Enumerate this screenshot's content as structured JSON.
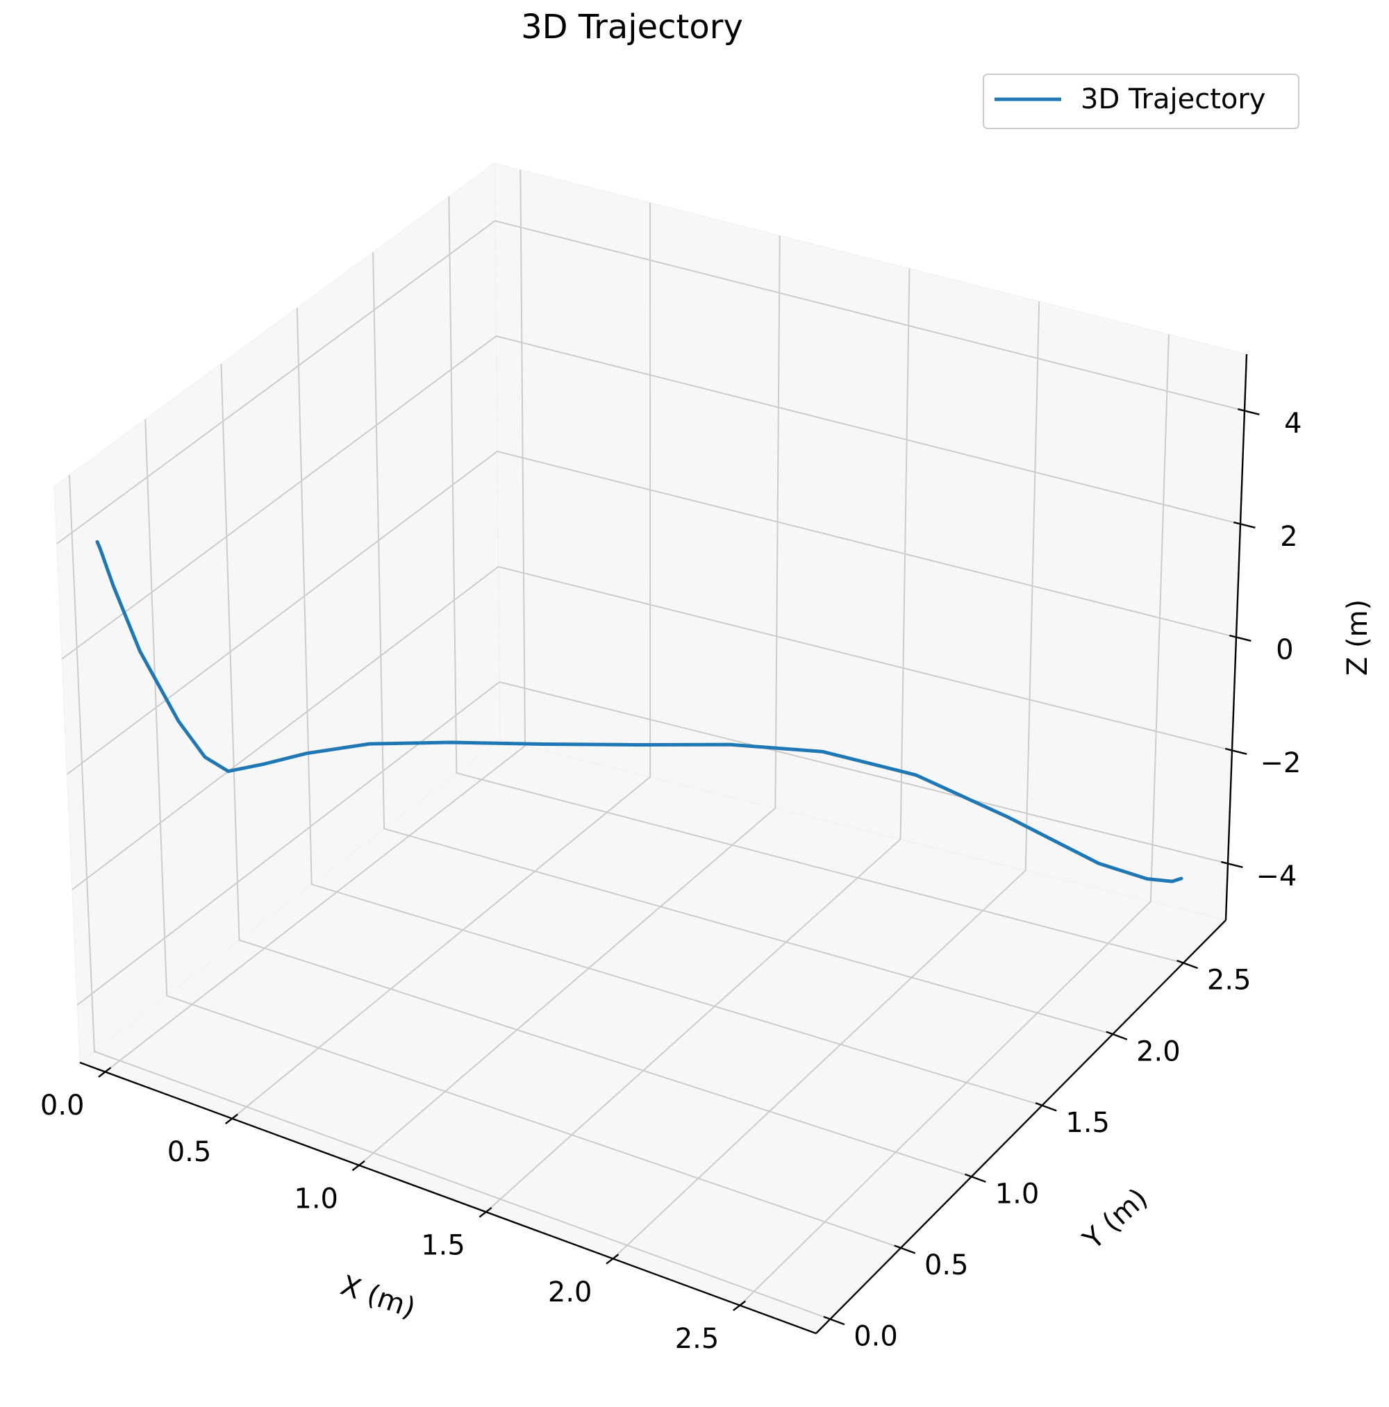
{
  "chart_data": {
    "type": "line",
    "projection": "3d",
    "title": "3D Trajectory",
    "xlabel": "X (m)",
    "ylabel": "Y (m)",
    "zlabel": "Z (m)",
    "xlim": [
      -0.1,
      2.8
    ],
    "ylim": [
      -0.1,
      2.8
    ],
    "zlim": [
      -5,
      5
    ],
    "x_ticks": [
      "0.0",
      "0.5",
      "1.0",
      "1.5",
      "2.0",
      "2.5"
    ],
    "y_ticks": [
      "0.0",
      "0.5",
      "1.0",
      "1.5",
      "2.0",
      "2.5"
    ],
    "z_ticks": [
      "4",
      "2",
      "0",
      "−2",
      "−4"
    ],
    "grid": true,
    "legend": {
      "position": "top-right",
      "entries": [
        "3D Trajectory"
      ]
    },
    "series": [
      {
        "name": "3D Trajectory",
        "color": "#1f77b4",
        "x": [
          0.0,
          0.01,
          0.05,
          0.12,
          0.22,
          0.27,
          0.3,
          0.35,
          0.42,
          0.55,
          0.75,
          1.0,
          1.25,
          1.5,
          1.75,
          2.0,
          2.25,
          2.5,
          2.62,
          2.68,
          2.7
        ],
        "y": [
          0.0,
          0.0,
          0.01,
          0.05,
          0.12,
          0.2,
          0.3,
          0.45,
          0.62,
          0.82,
          1.02,
          1.22,
          1.42,
          1.62,
          1.82,
          2.02,
          2.22,
          2.42,
          2.55,
          2.62,
          2.65
        ],
        "z": [
          4.0,
          3.9,
          3.3,
          2.2,
          1.0,
          0.3,
          -0.1,
          -0.2,
          -0.25,
          -0.3,
          -0.4,
          -0.5,
          -0.6,
          -0.7,
          -0.95,
          -1.5,
          -2.4,
          -3.4,
          -3.85,
          -4.0,
          -4.0
        ]
      }
    ]
  }
}
